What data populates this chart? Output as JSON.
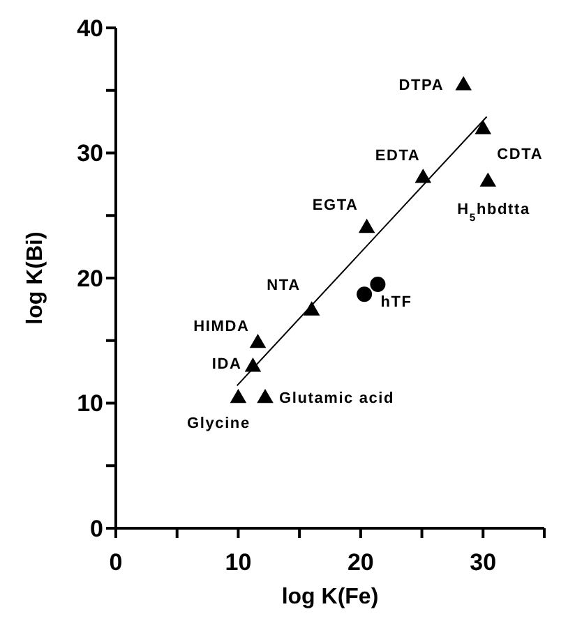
{
  "chart_data": {
    "type": "scatter",
    "xlabel": "log K(Fe)",
    "ylabel": "log K(Bi)",
    "xlim": [
      0,
      35
    ],
    "ylim": [
      0,
      40
    ],
    "xticks": [
      0,
      {
        "value": 5,
        "label": null
      },
      10,
      {
        "value": 15,
        "label": null
      },
      20,
      {
        "value": 25,
        "label": null
      },
      30,
      {
        "value": 35,
        "label": null
      }
    ],
    "yticks": [
      0,
      {
        "value": 5,
        "label": null
      },
      10,
      {
        "value": 15,
        "label": null
      },
      20,
      {
        "value": 25,
        "label": null
      },
      30,
      {
        "value": 35,
        "label": null
      },
      40
    ],
    "grid": false,
    "series": [
      {
        "marker": "triangle",
        "color": "#000000",
        "x": [
          28.4,
          30.0,
          25.1,
          30.4,
          20.5,
          16.0,
          11.6,
          11.2,
          10.0,
          12.2
        ],
        "values": [
          35.5,
          32.0,
          28.1,
          27.8,
          24.1,
          17.5,
          14.9,
          13.0,
          10.5,
          10.5
        ]
      },
      {
        "marker": "circle",
        "color": "#000000",
        "x": [
          20.3,
          21.4
        ],
        "values": [
          18.7,
          19.5
        ]
      },
      {
        "type": "line",
        "marker": "none",
        "line_style": "solid",
        "color": "#000000",
        "x": [
          9.9,
          30.3
        ],
        "values": [
          11.4,
          32.9
        ]
      }
    ],
    "annotations": [
      {
        "text": "DTPA",
        "x": 28.4,
        "y": 35.5
      },
      {
        "text": "CDTA",
        "x": 30.0,
        "y": 32.0
      },
      {
        "text": "EDTA",
        "x": 25.1,
        "y": 28.1
      },
      {
        "text": "H$_{5}$hbdtta",
        "x": 30.4,
        "y": 27.8
      },
      {
        "text": "EGTA",
        "x": 20.5,
        "y": 24.1
      },
      {
        "text": "NTA",
        "x": 16.0,
        "y": 17.5
      },
      {
        "text": "HIMDA",
        "x": 11.6,
        "y": 14.9
      },
      {
        "text": "IDA",
        "x": 11.2,
        "y": 13.0
      },
      {
        "text": "Glycine",
        "x": 10.0,
        "y": 10.5
      },
      {
        "text": "Glutamic acid",
        "x": 12.2,
        "y": 10.5
      },
      {
        "text": "hTF",
        "x": 21.4,
        "y": 19.5
      }
    ]
  }
}
